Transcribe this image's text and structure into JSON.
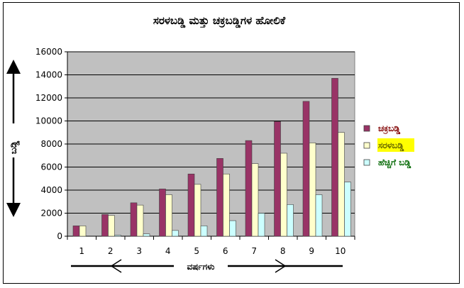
{
  "chart_data": {
    "type": "bar",
    "title": "ಸರಳಬಡ್ಡಿ ಮತ್ತು ಚಕ್ರಬಡ್ಡಿಗಳ ಹೋಲಿಕೆ",
    "xlabel": "ವರ್ಷಗಳು",
    "ylabel": "ಬಡ್ಡಿ",
    "categories": [
      "1",
      "2",
      "3",
      "4",
      "5",
      "6",
      "7",
      "8",
      "9",
      "10"
    ],
    "y_ticks": [
      "0",
      "2000",
      "4000",
      "6000",
      "8000",
      "10000",
      "12000",
      "14000",
      "16000"
    ],
    "ylim": [
      0,
      16000
    ],
    "grid": true,
    "legend_position": "right",
    "plot_background": "#c0c0c0",
    "series": [
      {
        "name": "ಚಕ್ರಬಡ್ಡಿ",
        "color": "#993366",
        "values": [
          900,
          1890,
          2900,
          4100,
          5400,
          6750,
          8300,
          9950,
          11700,
          13700
        ]
      },
      {
        "name": "ಸರಳಬಡ್ಡಿ",
        "color": "#ffffcc",
        "values": [
          900,
          1800,
          2700,
          3600,
          4500,
          5400,
          6300,
          7200,
          8100,
          9000
        ]
      },
      {
        "name": "ಹೆಚ್ಚಿಗೆ ಬಡ್ಡಿ",
        "color": "#ccffff",
        "values": [
          0,
          90,
          200,
          500,
          900,
          1350,
          2000,
          2750,
          3600,
          4700
        ]
      }
    ],
    "legend_text_colors": [
      "#800000",
      "#666600",
      "#006600"
    ],
    "legend_highlight": "#ffff00"
  }
}
